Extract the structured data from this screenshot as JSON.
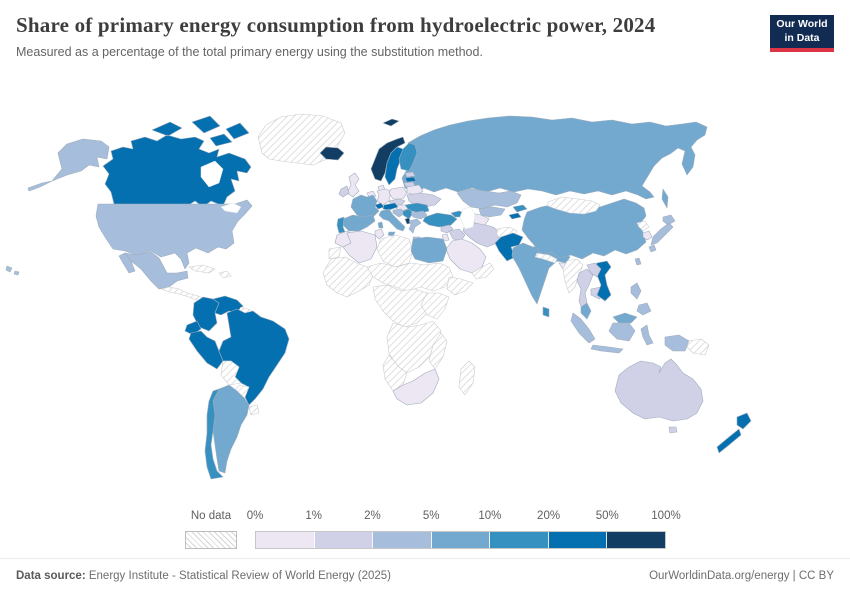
{
  "header": {
    "title": "Share of primary energy consumption from hydroelectric power, 2024",
    "subtitle": "Measured as a percentage of the total primary energy using the substitution method."
  },
  "logo": {
    "line1": "Our World",
    "line2": "in Data",
    "bg_color": "#122b52",
    "bar_color": "#dc3545"
  },
  "legend": {
    "no_data_label": "No data",
    "ticks": [
      "0%",
      "1%",
      "2%",
      "5%",
      "10%",
      "20%",
      "50%",
      "100%"
    ]
  },
  "footer": {
    "source_label": "Data source:",
    "source_text": " Energy Institute - Statistical Review of World Energy (2025)",
    "right_text": "OurWorldinData.org/energy | CC BY"
  },
  "chart_data": {
    "type": "heatmap",
    "subtype": "choropleth-world-map",
    "title": "Share of primary energy consumption from hydroelectric power, 2024",
    "unit": "% of total primary energy (substitution method)",
    "legend_position": "bottom",
    "no_data_style": "white-gray-diagonal-hatch",
    "bins": [
      {
        "range": "0-1%",
        "color": "#ece7f2"
      },
      {
        "range": "1-2%",
        "color": "#d0d1e6"
      },
      {
        "range": "2-5%",
        "color": "#a6bddb"
      },
      {
        "range": "5-10%",
        "color": "#74a9cf"
      },
      {
        "range": "10-20%",
        "color": "#3690c0"
      },
      {
        "range": "20-50%",
        "color": "#0570b0"
      },
      {
        "range": "50-100%",
        "color": "#123e64"
      }
    ],
    "countries": [
      {
        "id": "russia",
        "label": "Russia",
        "range": "5-10%"
      },
      {
        "id": "sakhalin",
        "label": "Russia (Sakhalin)",
        "range": "5-10%"
      },
      {
        "id": "kazakhstan",
        "label": "Kazakhstan",
        "range": "2-5%"
      },
      {
        "id": "canada",
        "label": "Canada",
        "range": "20-50%"
      },
      {
        "id": "alaska",
        "label": "United States (Alaska)",
        "range": "2-5%"
      },
      {
        "id": "greenland",
        "label": "Greenland",
        "range": "no-data"
      },
      {
        "id": "iceland",
        "label": "Iceland",
        "range": "50-100%"
      },
      {
        "id": "united-states",
        "label": "United States",
        "range": "2-5%"
      },
      {
        "id": "hawaii",
        "label": "United States (Hawaii)",
        "range": "2-5%"
      },
      {
        "id": "mexico",
        "label": "Mexico",
        "range": "2-5%"
      },
      {
        "id": "central-america",
        "label": "Central America (various)",
        "range": "no-data"
      },
      {
        "id": "cuba",
        "label": "Cuba",
        "range": "no-data"
      },
      {
        "id": "hispaniola",
        "label": "Hispaniola",
        "range": "no-data"
      },
      {
        "id": "colombia",
        "label": "Colombia",
        "range": "20-50%"
      },
      {
        "id": "venezuela",
        "label": "Venezuela",
        "range": "20-50%"
      },
      {
        "id": "guyanas",
        "label": "Guyana & Suriname",
        "range": "no-data"
      },
      {
        "id": "ecuador",
        "label": "Ecuador",
        "range": "20-50%"
      },
      {
        "id": "peru",
        "label": "Peru",
        "range": "20-50%"
      },
      {
        "id": "brazil",
        "label": "Brazil",
        "range": "20-50%"
      },
      {
        "id": "bolivia",
        "label": "Bolivia",
        "range": "no-data"
      },
      {
        "id": "paraguay",
        "label": "Paraguay",
        "range": "no-data"
      },
      {
        "id": "uruguay",
        "label": "Uruguay",
        "range": "no-data"
      },
      {
        "id": "argentina",
        "label": "Argentina",
        "range": "5-10%"
      },
      {
        "id": "chile",
        "label": "Chile",
        "range": "10-20%"
      },
      {
        "id": "norway",
        "label": "Norway",
        "range": "50-100%"
      },
      {
        "id": "svalbard",
        "label": "Svalbard",
        "range": "50-100%"
      },
      {
        "id": "sweden",
        "label": "Sweden",
        "range": "20-50%"
      },
      {
        "id": "finland",
        "label": "Finland",
        "range": "10-20%"
      },
      {
        "id": "denmark",
        "label": "Denmark",
        "range": "0-1%"
      },
      {
        "id": "united-kingdom",
        "label": "United Kingdom",
        "range": "0-1%"
      },
      {
        "id": "ireland",
        "label": "Ireland",
        "range": "1-2%"
      },
      {
        "id": "benelux",
        "label": "Benelux",
        "range": "0-1%"
      },
      {
        "id": "germany",
        "label": "Germany",
        "range": "0-1%"
      },
      {
        "id": "poland",
        "label": "Poland",
        "range": "0-1%"
      },
      {
        "id": "czechia-slovakia",
        "label": "Czechia & Slovakia",
        "range": "1-2%"
      },
      {
        "id": "estonia",
        "label": "Estonia",
        "range": "1-2%"
      },
      {
        "id": "latvia",
        "label": "Latvia",
        "range": "20-50%"
      },
      {
        "id": "lithuania",
        "label": "Lithuania",
        "range": "1-2%"
      },
      {
        "id": "belarus",
        "label": "Belarus",
        "range": "0-1%"
      },
      {
        "id": "ukraine",
        "label": "Ukraine",
        "range": "1-2%"
      },
      {
        "id": "romania",
        "label": "Romania",
        "range": "10-20%"
      },
      {
        "id": "hungary",
        "label": "Hungary",
        "range": "0-1%"
      },
      {
        "id": "france",
        "label": "France",
        "range": "5-10%"
      },
      {
        "id": "switzerland",
        "label": "Switzerland",
        "range": "20-50%"
      },
      {
        "id": "austria",
        "label": "Austria",
        "range": "20-50%"
      },
      {
        "id": "spain",
        "label": "Spain",
        "range": "5-10%"
      },
      {
        "id": "portugal",
        "label": "Portugal",
        "range": "10-20%"
      },
      {
        "id": "italy",
        "label": "Italy",
        "range": "5-10%"
      },
      {
        "id": "croatia-slovenia",
        "label": "Croatia & Slovenia",
        "range": "2-5%"
      },
      {
        "id": "serbia",
        "label": "Serbia",
        "range": "10-20%"
      },
      {
        "id": "albania",
        "label": "Albania",
        "range": "50-100%"
      },
      {
        "id": "bulgaria",
        "label": "Bulgaria",
        "range": "2-5%"
      },
      {
        "id": "greece",
        "label": "Greece",
        "range": "2-5%"
      },
      {
        "id": "turkey",
        "label": "Turkey",
        "range": "10-20%"
      },
      {
        "id": "caucasus",
        "label": "Georgia & Azerbaijan",
        "range": "10-20%"
      },
      {
        "id": "syria",
        "label": "Syria",
        "range": "1-2%"
      },
      {
        "id": "iraq",
        "label": "Iraq",
        "range": "1-2%"
      },
      {
        "id": "iran",
        "label": "Iran",
        "range": "1-2%"
      },
      {
        "id": "afghanistan",
        "label": "Afghanistan",
        "range": "no-data"
      },
      {
        "id": "jordan-israel",
        "label": "Jordan & Israel",
        "range": "0-1%"
      },
      {
        "id": "saudi-arabia",
        "label": "Saudi Arabia",
        "range": "0-1%"
      },
      {
        "id": "yemen-oman",
        "label": "Yemen & Oman",
        "range": "no-data"
      },
      {
        "id": "morocco",
        "label": "Morocco",
        "range": "0-1%"
      },
      {
        "id": "western-sahara",
        "label": "Western Sahara",
        "range": "no-data"
      },
      {
        "id": "algeria",
        "label": "Algeria",
        "range": "0-1%"
      },
      {
        "id": "tunisia",
        "label": "Tunisia",
        "range": "0-1%"
      },
      {
        "id": "libya",
        "label": "Libya",
        "range": "no-data"
      },
      {
        "id": "egypt",
        "label": "Egypt",
        "range": "5-10%"
      },
      {
        "id": "west-africa",
        "label": "West Africa (various)",
        "range": "no-data"
      },
      {
        "id": "sahel-sudan",
        "label": "Sahel & Sudan (various)",
        "range": "no-data"
      },
      {
        "id": "horn-of-africa",
        "label": "Horn of Africa",
        "range": "no-data"
      },
      {
        "id": "central-africa",
        "label": "Central Africa (various)",
        "range": "no-data"
      },
      {
        "id": "east-africa",
        "label": "East Africa (various)",
        "range": "no-data"
      },
      {
        "id": "southern-africa-interior",
        "label": "Southern Africa interior",
        "range": "no-data"
      },
      {
        "id": "namibia-botswana",
        "label": "Namibia & Botswana",
        "range": "no-data"
      },
      {
        "id": "mozambique",
        "label": "Mozambique",
        "range": "no-data"
      },
      {
        "id": "south-africa",
        "label": "South Africa",
        "range": "0-1%"
      },
      {
        "id": "madagascar",
        "label": "Madagascar",
        "range": "no-data"
      },
      {
        "id": "uzbekistan",
        "label": "Uzbekistan",
        "range": "2-5%"
      },
      {
        "id": "turkmenistan",
        "label": "Turkmenistan",
        "range": "0-1%"
      },
      {
        "id": "kyrgyzstan",
        "label": "Kyrgyzstan",
        "range": "10-20%"
      },
      {
        "id": "tajikistan",
        "label": "Tajikistan",
        "range": "20-50%"
      },
      {
        "id": "pakistan",
        "label": "Pakistan",
        "range": "20-50%"
      },
      {
        "id": "india",
        "label": "India",
        "range": "5-10%"
      },
      {
        "id": "nepal",
        "label": "Nepal",
        "range": "no-data"
      },
      {
        "id": "bangladesh",
        "label": "Bangladesh",
        "range": "0-1%"
      },
      {
        "id": "sri-lanka",
        "label": "Sri Lanka",
        "range": "10-20%"
      },
      {
        "id": "china",
        "label": "China",
        "range": "5-10%"
      },
      {
        "id": "mongolia",
        "label": "Mongolia",
        "range": "no-data"
      },
      {
        "id": "north-korea",
        "label": "North Korea",
        "range": "no-data"
      },
      {
        "id": "south-korea",
        "label": "South Korea",
        "range": "0-1%"
      },
      {
        "id": "japan",
        "label": "Japan",
        "range": "2-5%"
      },
      {
        "id": "taiwan",
        "label": "Taiwan",
        "range": "2-5%"
      },
      {
        "id": "myanmar",
        "label": "Myanmar",
        "range": "no-data"
      },
      {
        "id": "thailand",
        "label": "Thailand",
        "range": "1-2%"
      },
      {
        "id": "cambodia",
        "label": "Cambodia",
        "range": "1-2%"
      },
      {
        "id": "vietnam",
        "label": "Vietnam",
        "range": "20-50%"
      },
      {
        "id": "laos",
        "label": "Laos",
        "range": "1-2%"
      },
      {
        "id": "malaysia",
        "label": "Malaysia",
        "range": "5-10%"
      },
      {
        "id": "malaysia-borneo",
        "label": "Malaysia (Borneo)",
        "range": "5-10%"
      },
      {
        "id": "indonesia",
        "label": "Indonesia",
        "range": "2-5%"
      },
      {
        "id": "philippines",
        "label": "Philippines",
        "range": "2-5%"
      },
      {
        "id": "papua-new-guinea",
        "label": "Papua New Guinea",
        "range": "no-data"
      },
      {
        "id": "australia",
        "label": "Australia",
        "range": "1-2%"
      },
      {
        "id": "tasmania",
        "label": "Australia (Tasmania)",
        "range": "1-2%"
      },
      {
        "id": "new-zealand",
        "label": "New Zealand",
        "range": "20-50%"
      }
    ]
  }
}
